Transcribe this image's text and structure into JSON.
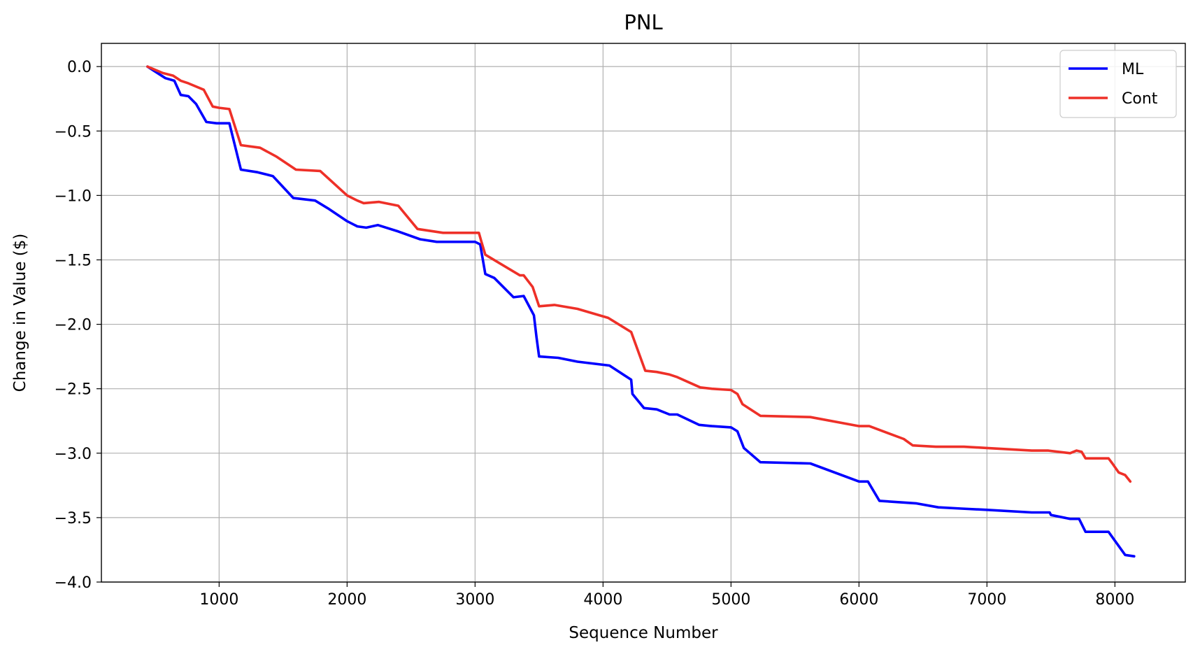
{
  "chart_data": {
    "type": "line",
    "title": "PNL",
    "xlabel": "Sequence Number",
    "ylabel": "Change in Value ($)",
    "xlim": [
      80,
      8550
    ],
    "ylim": [
      -4.0,
      0.18
    ],
    "xticks": [
      1000,
      2000,
      3000,
      4000,
      5000,
      6000,
      7000,
      8000
    ],
    "yticks": [
      0.0,
      -0.5,
      -1.0,
      -1.5,
      -2.0,
      -2.5,
      -3.0,
      -3.5,
      -4.0
    ],
    "xtick_labels": [
      "1000",
      "2000",
      "3000",
      "4000",
      "5000",
      "6000",
      "7000",
      "8000"
    ],
    "ytick_labels": [
      "0.0",
      "−0.5",
      "−1.0",
      "−1.5",
      "−2.0",
      "−2.5",
      "−3.0",
      "−3.5",
      "−4.0"
    ],
    "grid": true,
    "legend_position": "top-right",
    "series": [
      {
        "name": "ML",
        "color": "#0000ff",
        "x": [
          440,
          580,
          650,
          700,
          760,
          820,
          900,
          980,
          1080,
          1170,
          1300,
          1420,
          1580,
          1750,
          1850,
          2000,
          2080,
          2150,
          2240,
          2400,
          2570,
          2700,
          3000,
          3040,
          3080,
          3150,
          3300,
          3380,
          3460,
          3480,
          3500,
          3650,
          3800,
          4050,
          4220,
          4230,
          4320,
          4420,
          4520,
          4580,
          4750,
          4850,
          5000,
          5050,
          5100,
          5230,
          5620,
          6000,
          6070,
          6160,
          6450,
          6620,
          6800,
          7000,
          7350,
          7490,
          7500,
          7650,
          7720,
          7770,
          7950,
          8000,
          8080,
          8150
        ],
        "y": [
          0.0,
          -0.09,
          -0.11,
          -0.22,
          -0.23,
          -0.29,
          -0.43,
          -0.44,
          -0.44,
          -0.8,
          -0.82,
          -0.85,
          -1.02,
          -1.04,
          -1.1,
          -1.2,
          -1.24,
          -1.25,
          -1.23,
          -1.28,
          -1.34,
          -1.36,
          -1.36,
          -1.38,
          -1.61,
          -1.64,
          -1.79,
          -1.78,
          -1.93,
          -2.1,
          -2.25,
          -2.26,
          -2.29,
          -2.32,
          -2.43,
          -2.54,
          -2.65,
          -2.66,
          -2.7,
          -2.7,
          -2.78,
          -2.79,
          -2.8,
          -2.83,
          -2.96,
          -3.07,
          -3.08,
          -3.22,
          -3.22,
          -3.37,
          -3.39,
          -3.42,
          -3.43,
          -3.44,
          -3.46,
          -3.46,
          -3.48,
          -3.51,
          -3.51,
          -3.61,
          -3.61,
          -3.68,
          -3.79,
          -3.8
        ]
      },
      {
        "name": "Cont",
        "color": "#ee3028",
        "x": [
          440,
          560,
          640,
          700,
          760,
          880,
          950,
          1000,
          1080,
          1170,
          1320,
          1450,
          1600,
          1790,
          2000,
          2080,
          2130,
          2250,
          2400,
          2550,
          2750,
          3030,
          3050,
          3080,
          3350,
          3380,
          3450,
          3500,
          3620,
          3800,
          4040,
          4220,
          4330,
          4420,
          4520,
          4580,
          4760,
          4850,
          5000,
          5050,
          5090,
          5230,
          5620,
          6000,
          6080,
          6350,
          6420,
          6600,
          6820,
          7000,
          7350,
          7480,
          7650,
          7700,
          7740,
          7770,
          7950,
          7980,
          8030,
          8080,
          8120
        ],
        "y": [
          0.0,
          -0.05,
          -0.07,
          -0.11,
          -0.13,
          -0.18,
          -0.31,
          -0.32,
          -0.33,
          -0.61,
          -0.63,
          -0.7,
          -0.8,
          -0.81,
          -1.0,
          -1.04,
          -1.06,
          -1.05,
          -1.08,
          -1.26,
          -1.29,
          -1.29,
          -1.36,
          -1.46,
          -1.62,
          -1.62,
          -1.71,
          -1.86,
          -1.85,
          -1.88,
          -1.95,
          -2.06,
          -2.36,
          -2.37,
          -2.39,
          -2.41,
          -2.49,
          -2.5,
          -2.51,
          -2.54,
          -2.62,
          -2.71,
          -2.72,
          -2.79,
          -2.79,
          -2.89,
          -2.94,
          -2.95,
          -2.95,
          -2.96,
          -2.98,
          -2.98,
          -3.0,
          -2.98,
          -2.99,
          -3.04,
          -3.04,
          -3.08,
          -3.15,
          -3.17,
          -3.22
        ]
      }
    ]
  }
}
